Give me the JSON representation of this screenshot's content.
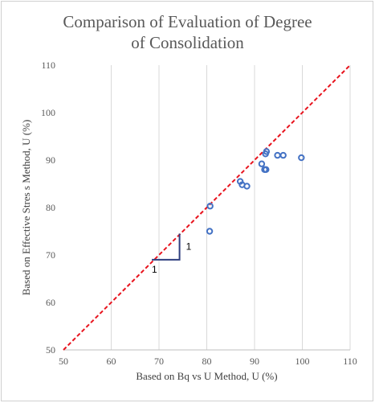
{
  "chart_data": {
    "type": "scatter",
    "title_lines": [
      "Comparison of Evaluation of Degree",
      "of Consolidation"
    ],
    "xlabel": "Based on Bq vs U Method, U (%)",
    "ylabel": "Based on Effective Stres s Method, U (%)",
    "xlim": [
      50,
      110
    ],
    "ylim": [
      50,
      110
    ],
    "xticks": [
      50,
      60,
      70,
      80,
      90,
      100,
      110
    ],
    "yticks": [
      50,
      60,
      70,
      80,
      90,
      100,
      110
    ],
    "grid": "vertical",
    "points": [
      {
        "x": 80.7,
        "y": 80.3
      },
      {
        "x": 80.6,
        "y": 75.0
      },
      {
        "x": 87.0,
        "y": 85.5
      },
      {
        "x": 87.4,
        "y": 84.8
      },
      {
        "x": 88.4,
        "y": 84.5
      },
      {
        "x": 91.5,
        "y": 89.2
      },
      {
        "x": 92.1,
        "y": 88.0
      },
      {
        "x": 92.4,
        "y": 88.0
      },
      {
        "x": 92.3,
        "y": 91.3
      },
      {
        "x": 92.5,
        "y": 91.8
      },
      {
        "x": 94.8,
        "y": 91.0
      },
      {
        "x": 96.0,
        "y": 91.0
      },
      {
        "x": 99.8,
        "y": 90.5
      }
    ],
    "line_1to1": {
      "x": [
        50,
        110
      ],
      "y": [
        50,
        110
      ],
      "color": "#e8141e",
      "style": "dashed"
    },
    "slope_triangle": {
      "x0": 68.5,
      "x1": 74.3,
      "y0": 69.0,
      "y1": 74.5,
      "labels": [
        "1",
        "1"
      ],
      "color": "#2f3f7f"
    },
    "marker_color": "#4472c4"
  }
}
